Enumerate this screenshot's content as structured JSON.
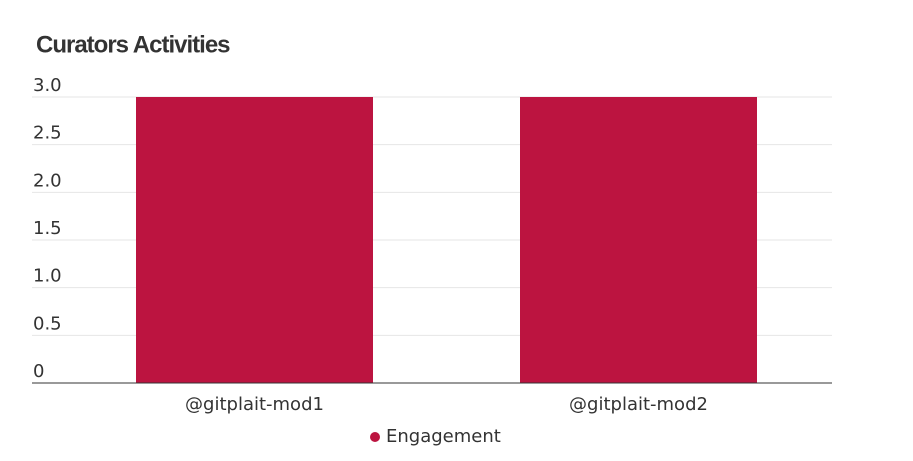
{
  "chart_data": {
    "type": "bar",
    "title": "Curators Activities",
    "categories": [
      "@gitplait-mod1",
      "@gitplait-mod2"
    ],
    "series": [
      {
        "name": "Engagement",
        "color": "#bc1440",
        "values": [
          3,
          3
        ]
      }
    ],
    "ylim": [
      0,
      3
    ],
    "yticks": [
      0,
      0.5,
      {
        "value": 1,
        "label": "1.0"
      },
      1.5,
      {
        "value": 2,
        "label": "2.0"
      },
      2.5,
      {
        "value": 3,
        "label": "3.0"
      }
    ],
    "grid": true,
    "legend": "bottom"
  }
}
